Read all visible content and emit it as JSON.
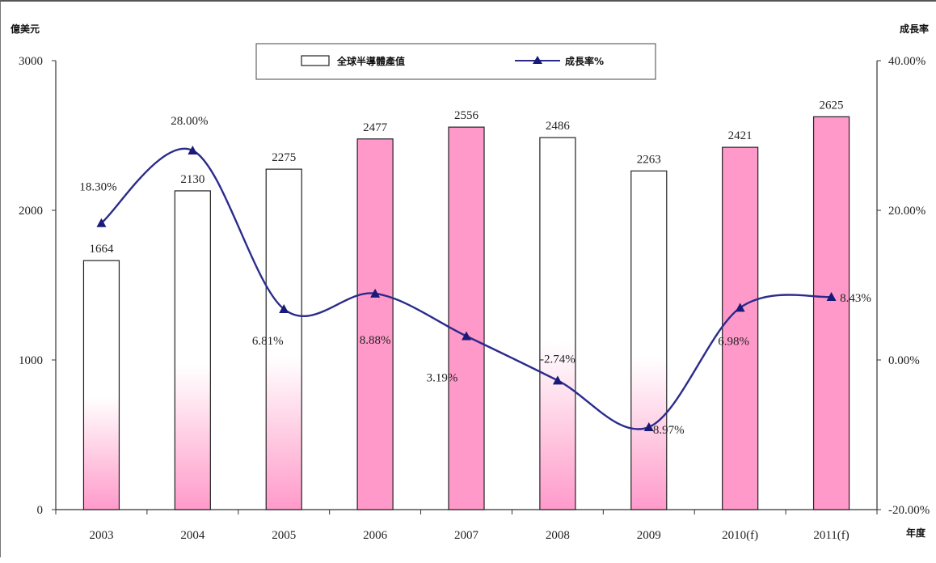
{
  "chart_data": {
    "type": "bar",
    "categories": [
      "2003",
      "2004",
      "2005",
      "2006",
      "2007",
      "2008",
      "2009",
      "2010(f)",
      "2011(f)"
    ],
    "series": [
      {
        "name": "全球半導體產值",
        "type": "bar",
        "axis": "left",
        "values": [
          1664,
          2130,
          2275,
          2477,
          2556,
          2486,
          2263,
          2421,
          2625
        ],
        "labels": [
          "1664",
          "2130",
          "2275",
          "2477",
          "2556",
          "2486",
          "2263",
          "2421",
          "2625"
        ],
        "fill_pattern": [
          "gradient",
          "gradient",
          "gradient",
          "solid",
          "solid",
          "gradient",
          "gradient",
          "solid",
          "solid"
        ]
      },
      {
        "name": "成長率%",
        "type": "line",
        "axis": "right",
        "values": [
          18.3,
          28.0,
          6.81,
          8.88,
          3.19,
          -2.74,
          -8.97,
          6.98,
          8.43
        ],
        "labels": [
          "18.30%",
          "28.00%",
          "6.81%",
          "8.88%",
          "3.19%",
          "-2.74%",
          "-8.97%",
          "6.98%",
          "8.43%"
        ]
      }
    ],
    "ylabel": "億美元",
    "ylabel_right": "成長率",
    "xlabel": "年度",
    "ylim": [
      0,
      3000
    ],
    "ylim_right": [
      -20,
      40
    ],
    "yticks": [
      "0",
      "1000",
      "2000",
      "3000"
    ],
    "yticks_right": [
      "-20.00%",
      "0.00%",
      "20.00%",
      "40.00%"
    ],
    "legend": "top-center",
    "grid": false,
    "colors": {
      "bar_fill": "#ff99c9",
      "bar_edge": "#222222",
      "line": "#2b2b8c",
      "marker": "#1a1a7a"
    }
  }
}
